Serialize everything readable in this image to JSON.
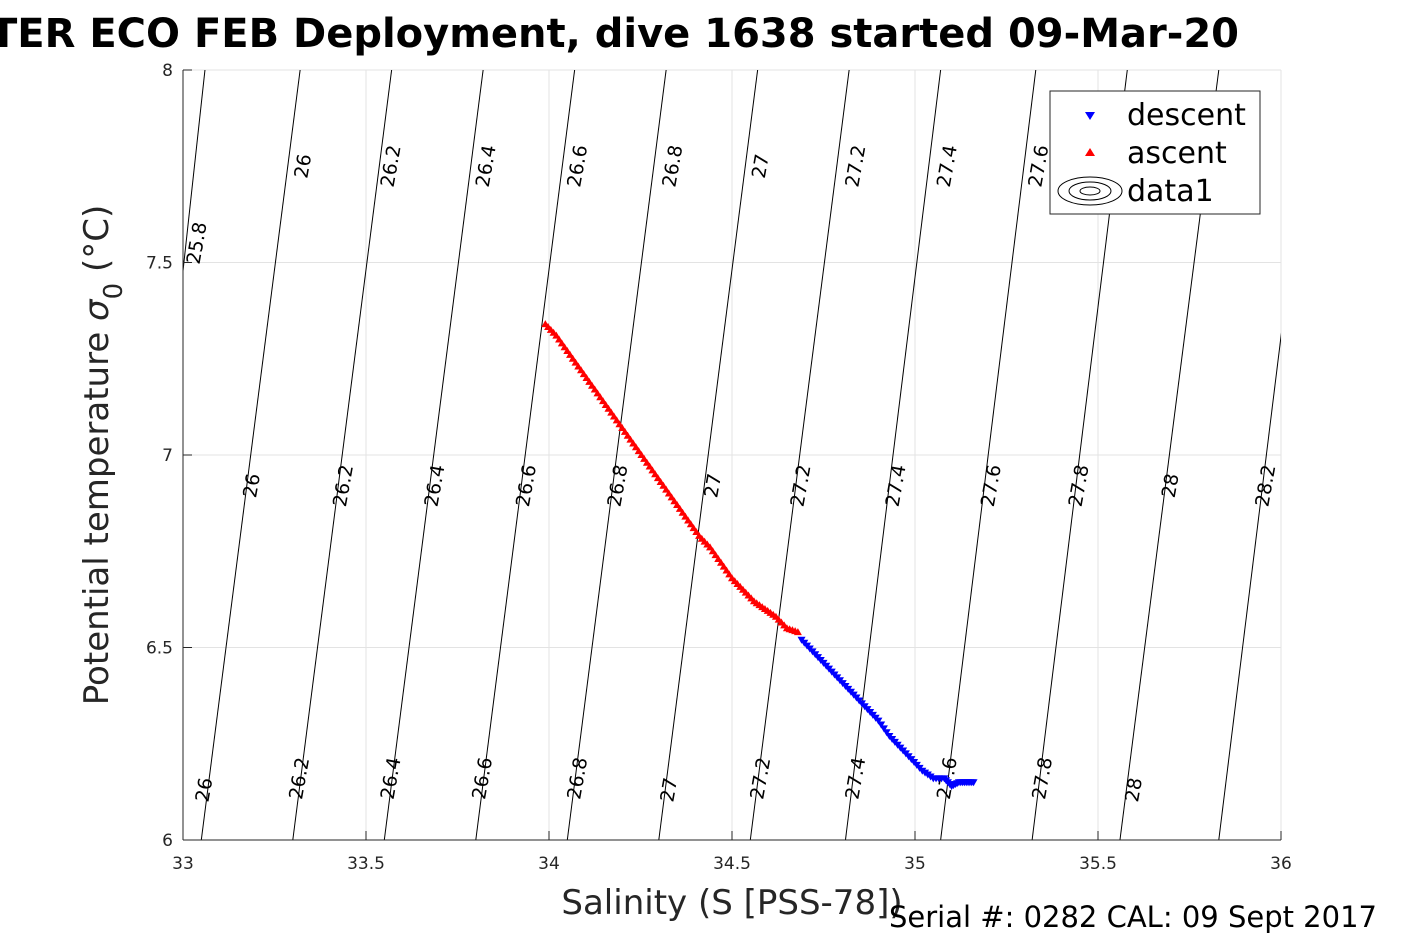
{
  "chart_data": {
    "type": "scatter",
    "title": "TER ECO FEB Deployment, dive 1638 started 09-Mar-20",
    "xlabel": "Salinity (S [PSS-78])",
    "ylabel": "Potential temperature σ 0 (°C)",
    "ylabel_main": "Potential temperature ",
    "ylabel_sigma": "σ",
    "ylabel_sub": "0",
    "ylabel_unit": " (°C)",
    "xlim": [
      33,
      36
    ],
    "ylim": [
      6,
      8
    ],
    "xticks": [
      "33",
      "33.5",
      "34",
      "34.5",
      "35",
      "35.5",
      "36"
    ],
    "yticks": [
      "6",
      "6.5",
      "7",
      "7.5",
      "8"
    ],
    "grid": true,
    "footer": "Serial #: 0282  CAL: 09 Sept 2017",
    "legend": {
      "position": "top-right",
      "entries": [
        {
          "name": "descent",
          "marker": "down-triangle",
          "color": "#0000ff"
        },
        {
          "name": "ascent",
          "marker": "up-triangle",
          "color": "#ff0000"
        },
        {
          "name": "data1",
          "marker": "contour",
          "color": "#000000"
        }
      ]
    },
    "isopycnals": [
      {
        "sigma": 25.8,
        "s_at_t6": 32.83,
        "s_at_t8": 33.06
      },
      {
        "sigma": 26.0,
        "s_at_t6": 33.05,
        "s_at_t8": 33.32
      },
      {
        "sigma": 26.2,
        "s_at_t6": 33.3,
        "s_at_t8": 33.57
      },
      {
        "sigma": 26.4,
        "s_at_t6": 33.55,
        "s_at_t8": 33.82
      },
      {
        "sigma": 26.6,
        "s_at_t6": 33.8,
        "s_at_t8": 34.07
      },
      {
        "sigma": 26.8,
        "s_at_t6": 34.05,
        "s_at_t8": 34.32
      },
      {
        "sigma": 27.0,
        "s_at_t6": 34.3,
        "s_at_t8": 34.57
      },
      {
        "sigma": 27.2,
        "s_at_t6": 34.55,
        "s_at_t8": 34.82
      },
      {
        "sigma": 27.4,
        "s_at_t6": 34.81,
        "s_at_t8": 35.07
      },
      {
        "sigma": 27.6,
        "s_at_t6": 35.07,
        "s_at_t8": 35.33
      },
      {
        "sigma": 27.8,
        "s_at_t6": 35.32,
        "s_at_t8": 35.58
      },
      {
        "sigma": 28.0,
        "s_at_t6": 35.56,
        "s_at_t8": 35.83
      },
      {
        "sigma": 28.2,
        "s_at_t6": 35.83,
        "s_at_t8": 36.09
      }
    ],
    "contour_labels": [
      {
        "text": "25.8",
        "s": 33.04,
        "t": 7.55
      },
      {
        "text": "26",
        "s": 33.33,
        "t": 7.75
      },
      {
        "text": "26.2",
        "s": 33.57,
        "t": 7.75
      },
      {
        "text": "26.4",
        "s": 33.83,
        "t": 7.75
      },
      {
        "text": "26.6",
        "s": 34.08,
        "t": 7.75
      },
      {
        "text": "26.8",
        "s": 34.34,
        "t": 7.75
      },
      {
        "text": "27",
        "s": 34.58,
        "t": 7.75
      },
      {
        "text": "27.2",
        "s": 34.84,
        "t": 7.75
      },
      {
        "text": "27.4",
        "s": 35.09,
        "t": 7.75
      },
      {
        "text": "27.6",
        "s": 35.34,
        "t": 7.75
      },
      {
        "text": "26",
        "s": 33.19,
        "t": 6.92
      },
      {
        "text": "26.2",
        "s": 33.44,
        "t": 6.92
      },
      {
        "text": "26.4",
        "s": 33.69,
        "t": 6.92
      },
      {
        "text": "26.6",
        "s": 33.94,
        "t": 6.92
      },
      {
        "text": "26.8",
        "s": 34.19,
        "t": 6.92
      },
      {
        "text": "27",
        "s": 34.45,
        "t": 6.92
      },
      {
        "text": "27.2",
        "s": 34.69,
        "t": 6.92
      },
      {
        "text": "27.4",
        "s": 34.95,
        "t": 6.92
      },
      {
        "text": "27.6",
        "s": 35.21,
        "t": 6.92
      },
      {
        "text": "27.8",
        "s": 35.45,
        "t": 6.92
      },
      {
        "text": "28",
        "s": 35.7,
        "t": 6.92
      },
      {
        "text": "28.2",
        "s": 35.96,
        "t": 6.92
      },
      {
        "text": "26",
        "s": 33.06,
        "t": 6.13
      },
      {
        "text": "26.2",
        "s": 33.32,
        "t": 6.16
      },
      {
        "text": "26.4",
        "s": 33.57,
        "t": 6.16
      },
      {
        "text": "26.6",
        "s": 33.82,
        "t": 6.16
      },
      {
        "text": "26.8",
        "s": 34.08,
        "t": 6.16
      },
      {
        "text": "27",
        "s": 34.33,
        "t": 6.13
      },
      {
        "text": "27.2",
        "s": 34.58,
        "t": 6.16
      },
      {
        "text": "27.4",
        "s": 34.84,
        "t": 6.16
      },
      {
        "text": "27.6",
        "s": 35.09,
        "t": 6.16
      },
      {
        "text": "27.8",
        "s": 35.35,
        "t": 6.16
      },
      {
        "text": "28",
        "s": 35.6,
        "t": 6.13
      }
    ],
    "series": [
      {
        "name": "ascent",
        "color": "#ff0000",
        "marker": "up-triangle",
        "points": [
          [
            33.99,
            7.34
          ],
          [
            34.02,
            7.31
          ],
          [
            34.05,
            7.27
          ],
          [
            34.08,
            7.23
          ],
          [
            34.11,
            7.19
          ],
          [
            34.14,
            7.15
          ],
          [
            34.17,
            7.11
          ],
          [
            34.2,
            7.07
          ],
          [
            34.23,
            7.03
          ],
          [
            34.26,
            6.99
          ],
          [
            34.29,
            6.95
          ],
          [
            34.32,
            6.91
          ],
          [
            34.35,
            6.87
          ],
          [
            34.38,
            6.83
          ],
          [
            34.41,
            6.79
          ],
          [
            34.44,
            6.76
          ],
          [
            34.47,
            6.72
          ],
          [
            34.5,
            6.68
          ],
          [
            34.53,
            6.65
          ],
          [
            34.56,
            6.62
          ],
          [
            34.59,
            6.6
          ],
          [
            34.62,
            6.58
          ],
          [
            34.65,
            6.55
          ],
          [
            34.68,
            6.54
          ]
        ]
      },
      {
        "name": "descent",
        "color": "#0000ff",
        "marker": "down-triangle",
        "points": [
          [
            34.69,
            6.52
          ],
          [
            34.72,
            6.49
          ],
          [
            34.75,
            6.46
          ],
          [
            34.78,
            6.43
          ],
          [
            34.81,
            6.4
          ],
          [
            34.84,
            6.37
          ],
          [
            34.87,
            6.34
          ],
          [
            34.9,
            6.31
          ],
          [
            34.93,
            6.27
          ],
          [
            34.96,
            6.24
          ],
          [
            34.99,
            6.21
          ],
          [
            35.02,
            6.18
          ],
          [
            35.05,
            6.16
          ],
          [
            35.08,
            6.16
          ],
          [
            35.1,
            6.14
          ],
          [
            35.12,
            6.15
          ],
          [
            35.14,
            6.15
          ],
          [
            35.16,
            6.15
          ]
        ]
      }
    ]
  }
}
